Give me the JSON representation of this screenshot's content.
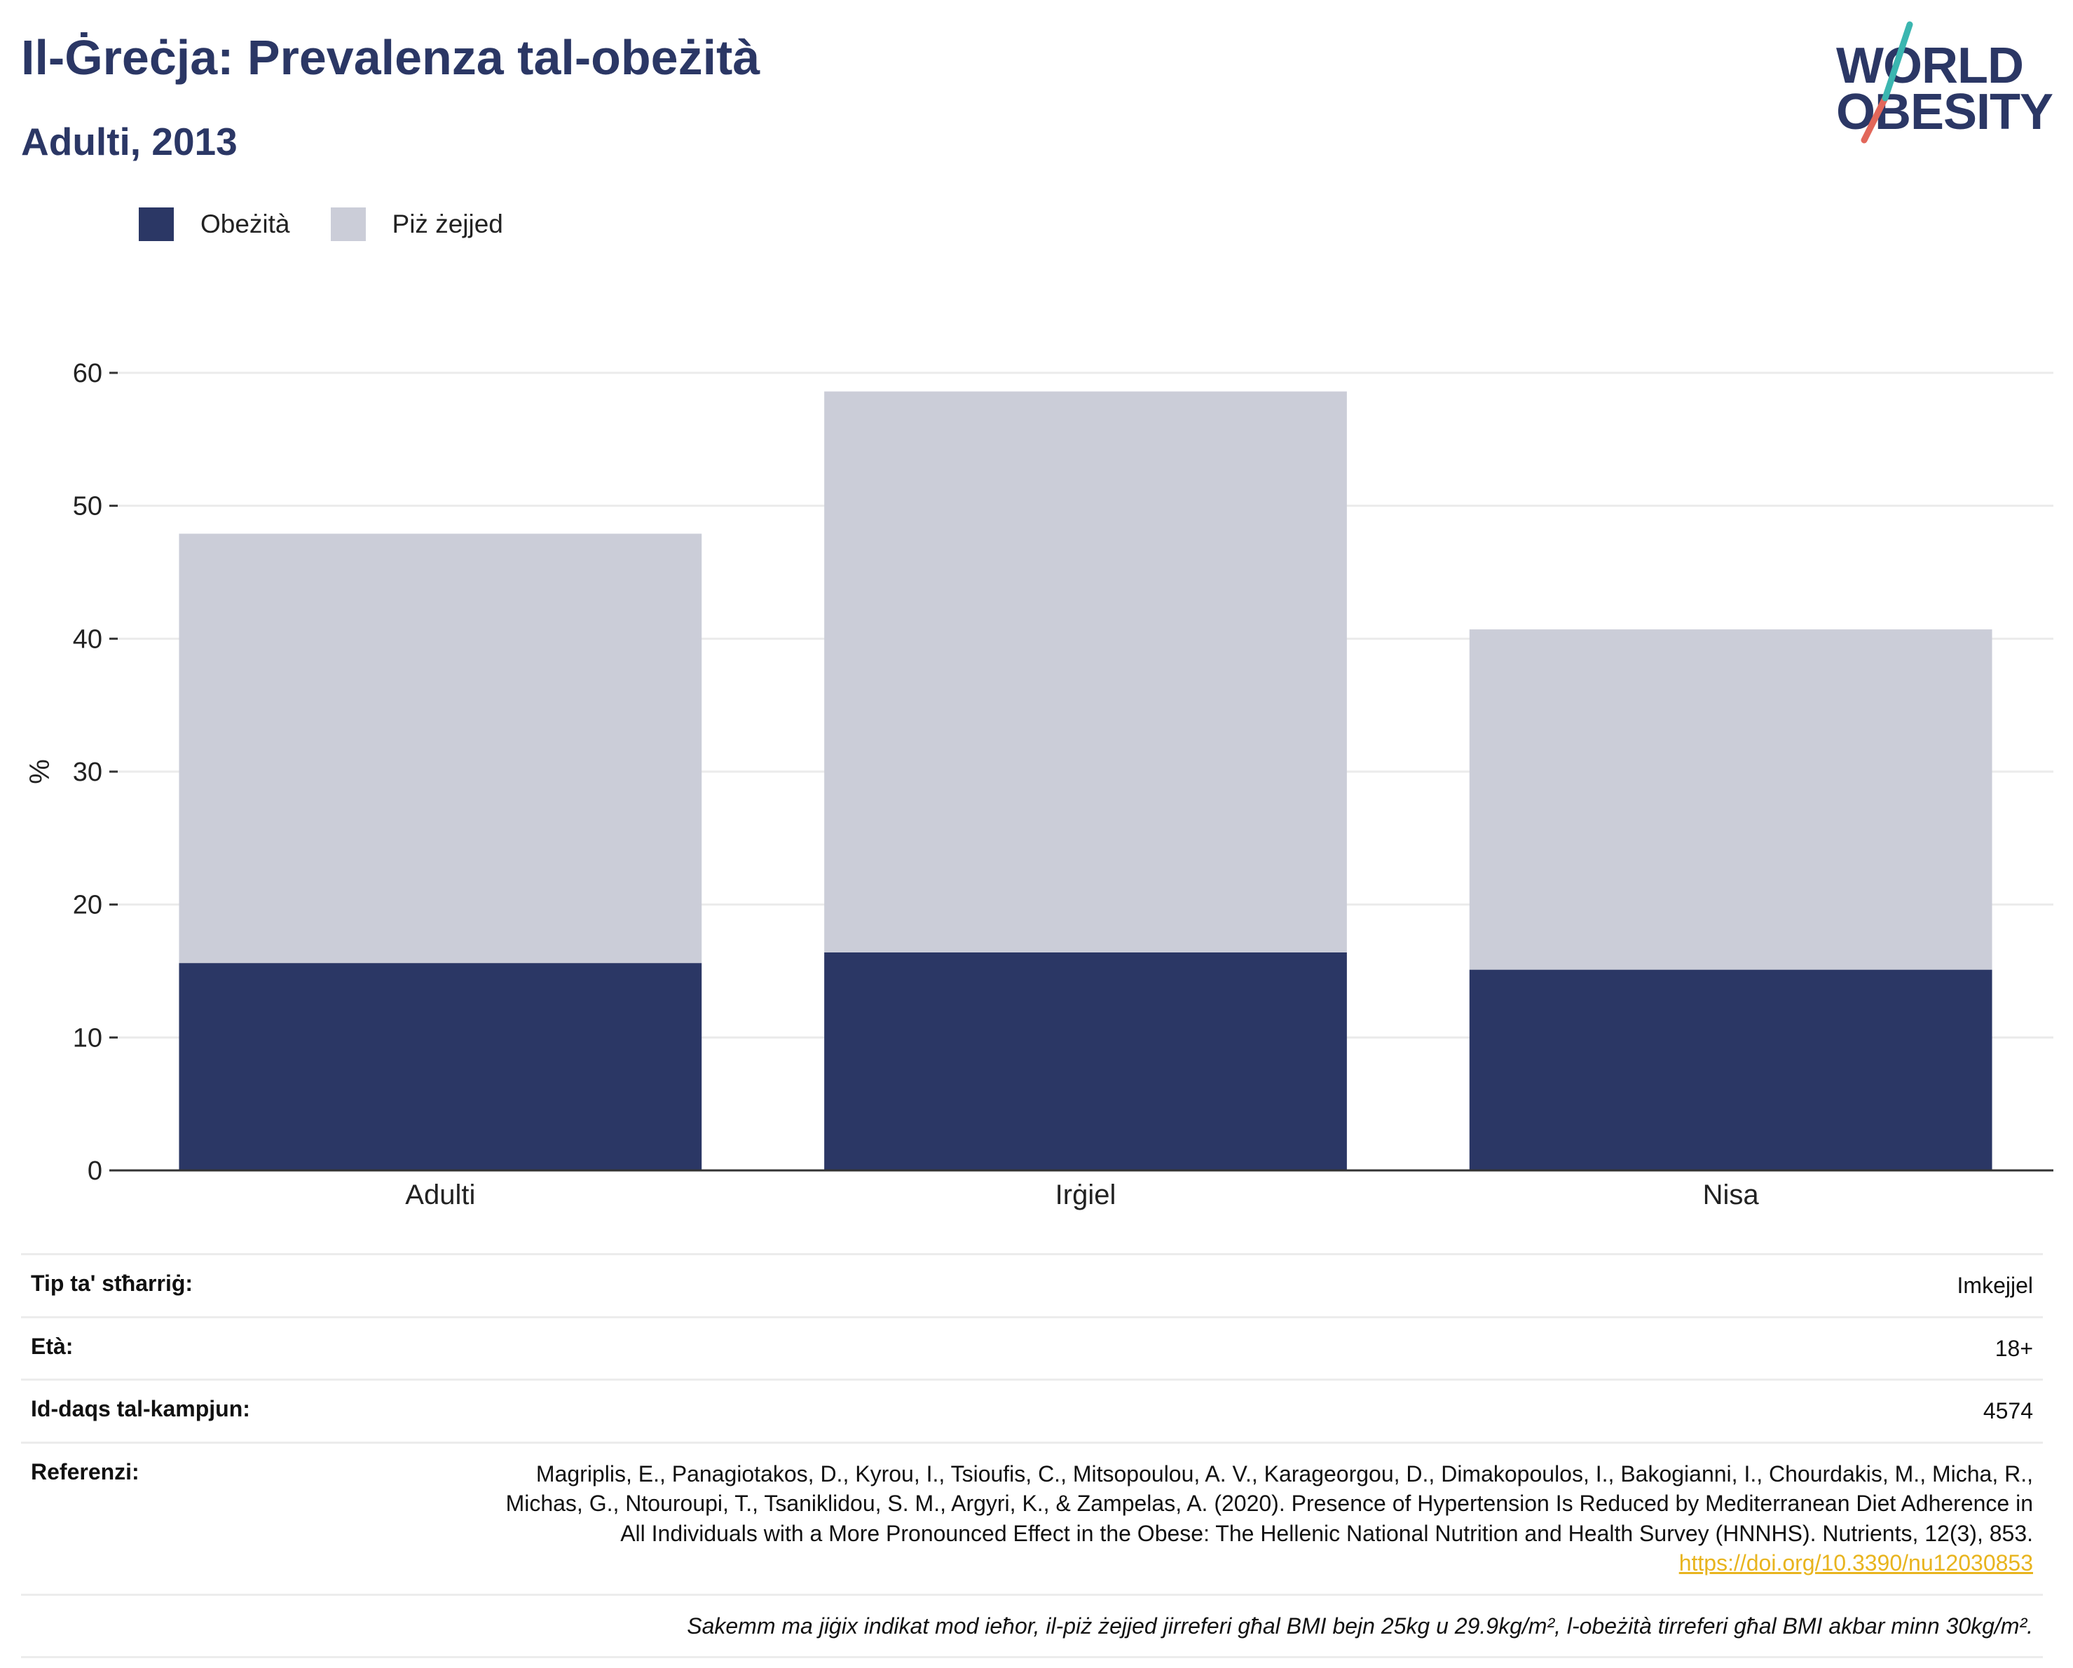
{
  "header": {
    "title": "Il-Ġreċja: Prevalenza tal-obeżità",
    "subtitle": "Adulti, 2013"
  },
  "logo": {
    "line1": "WORLD",
    "line2": "OBESITY"
  },
  "colors": {
    "obesity": "#2b3765",
    "overweight": "#cbcdd8",
    "title": "#2b3765",
    "link": "#e8b41e"
  },
  "legend": [
    {
      "label": "Obeżità",
      "color": "#2b3765"
    },
    {
      "label": "Piż żejjed",
      "color": "#cbcdd8"
    }
  ],
  "chart_data": {
    "type": "bar",
    "stacked": true,
    "categories": [
      "Adulti",
      "Irġiel",
      "Nisa"
    ],
    "series": [
      {
        "name": "Obeżità",
        "values": [
          15.6,
          16.4,
          15.1
        ]
      },
      {
        "name": "Piż żejjed",
        "values": [
          32.3,
          42.2,
          25.6
        ]
      }
    ],
    "ylabel": "%",
    "ylim": [
      0,
      60
    ],
    "yticks": [
      0,
      10,
      20,
      30,
      40,
      50,
      60
    ],
    "grid": true,
    "legend_position": "top-left"
  },
  "info": {
    "survey_type_label": "Tip ta' stħarriġ:",
    "survey_type": "Imkejjel",
    "age_label": "Età:",
    "age": "18+",
    "sample_label": "Id-daqs tal-kampjun:",
    "sample": "4574",
    "reference_label": "Referenzi:",
    "reference": "Magriplis, E., Panagiotakos, D., Kyrou, I., Tsioufis, C., Mitsopoulou, A. V., Karageorgou, D., Dimakopoulos, I., Bakogianni, I., Chourdakis, M., Micha, R., Michas, G., Ntouroupi, T., Tsaniklidou, S. M., Argyri, K., & Zampelas, A. (2020). Presence of Hypertension Is Reduced by Mediterranean Diet Adherence in All Individuals with a More Pronounced Effect in the Obese: The Hellenic National Nutrition and Health Survey (HNNHS). Nutrients, 12(3), 853.",
    "reference_link": "https://doi.org/10.3390/nu12030853",
    "note": "Sakemm ma jiġix indikat mod ieħor, il-piż żejjed jirreferi għal BMI bejn 25kg u 29.9kg/m², l-obeżità tirreferi għal BMI akbar minn 30kg/m²."
  }
}
